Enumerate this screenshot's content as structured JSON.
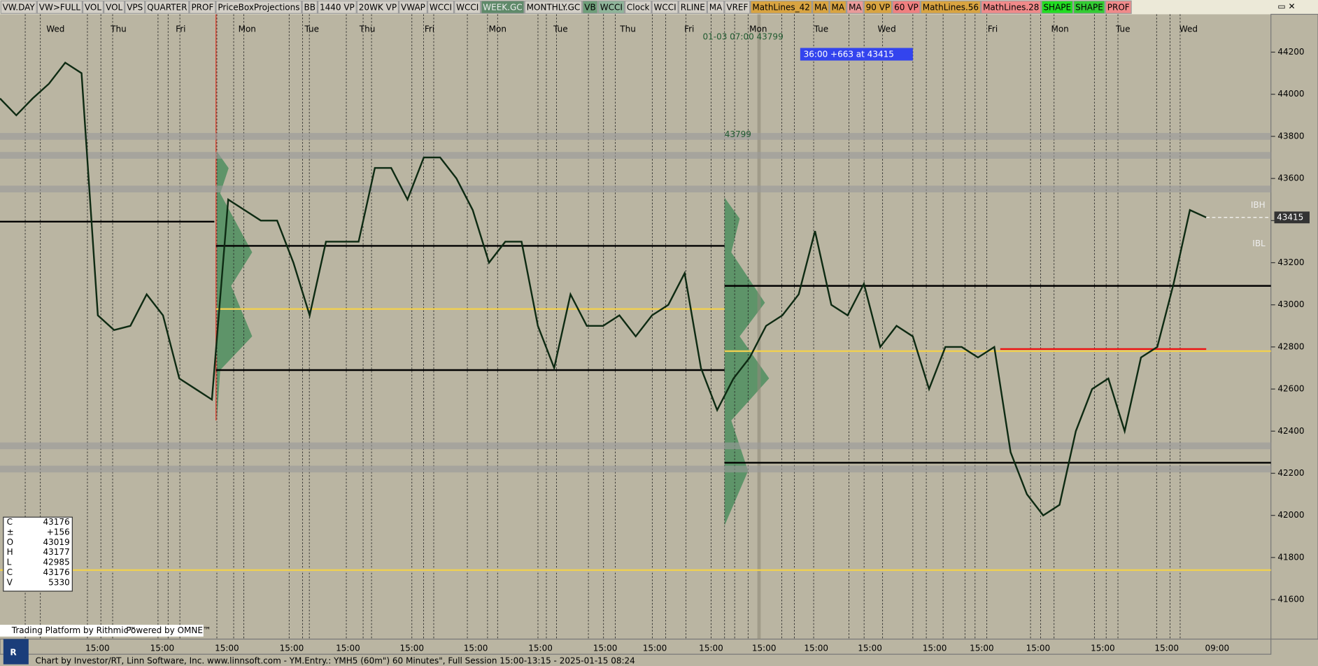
{
  "toolbar": [
    {
      "label": "VW.DAY",
      "color": "#d4d0c8"
    },
    {
      "label": "VW>FULL",
      "color": "#d4d0c8"
    },
    {
      "label": "VOL",
      "color": "#d4d0c8"
    },
    {
      "label": "VOL",
      "color": "#d4d0c8"
    },
    {
      "label": "VPS",
      "color": "#d4d0c8"
    },
    {
      "label": "QUARTER",
      "color": "#d4d0c8"
    },
    {
      "label": "PROF",
      "color": "#d4d0c8"
    },
    {
      "label": "PriceBoxProjections",
      "color": "#d4d0c8"
    },
    {
      "label": "BB",
      "color": "#d4d0c8"
    },
    {
      "label": "1440 VP",
      "color": "#d4d0c8"
    },
    {
      "label": "20WK VP",
      "color": "#d4d0c8"
    },
    {
      "label": "VWAP",
      "color": "#d4d0c8"
    },
    {
      "label": "WCCI",
      "color": "#d4d0c8"
    },
    {
      "label": "WCCI",
      "color": "#d4d0c8"
    },
    {
      "label": "WEEK.GC",
      "color": "#5f8a6a"
    },
    {
      "label": "MONTHLY.GC",
      "color": "#d4d0c8"
    },
    {
      "label": "VB",
      "color": "#6f9f7a"
    },
    {
      "label": "WCCI",
      "color": "#8fb59a"
    },
    {
      "label": "Clock",
      "color": "#d4d0c8"
    },
    {
      "label": "WCCI",
      "color": "#d4d0c8"
    },
    {
      "label": "RLINE",
      "color": "#d4d0c8"
    },
    {
      "label": "MA",
      "color": "#d4d0c8"
    },
    {
      "label": "VREF",
      "color": "#d4d0c8"
    },
    {
      "label": "MathLines_42",
      "color": "#d9a441"
    },
    {
      "label": "MA",
      "color": "#d9a441"
    },
    {
      "label": "MA",
      "color": "#d9a441"
    },
    {
      "label": "MA",
      "color": "#e99a9a"
    },
    {
      "label": "90 VP",
      "color": "#d9a441"
    },
    {
      "label": "60 VP",
      "color": "#f08080"
    },
    {
      "label": "MathLines.56",
      "color": "#d9a441"
    },
    {
      "label": "MathLines.28",
      "color": "#f08a8a"
    },
    {
      "label": "SHAPE",
      "color": "#22dd22"
    },
    {
      "label": "SHAPE",
      "color": "#33cc33"
    },
    {
      "label": "PROF",
      "color": "#f08a8a"
    }
  ],
  "axis": {
    "yticks": [
      44200,
      44000,
      43800,
      43600,
      43400,
      43200,
      43000,
      42800,
      42600,
      42400,
      42200,
      42000,
      41800,
      41600
    ],
    "last_price": 43415,
    "ibh": "IBH",
    "ibl": "IBL"
  },
  "day_labels": [
    "Wed",
    "Thu",
    "Fri",
    "Mon",
    "Tue",
    "Thu",
    "Fri",
    "Mon",
    "Tue",
    "Thu",
    "Fri",
    "Mon",
    "Tue",
    "Wed",
    "Fri",
    "Mon",
    "Tue",
    "Wed"
  ],
  "time_labels": [
    "15:00",
    "15:00",
    "15:00",
    "15:00",
    "15:00",
    "15:00",
    "15:00",
    "15:00",
    "15:00",
    "15:00",
    "15:00",
    "15:00",
    "15:00",
    "15:00",
    "15:00",
    "15:00",
    "15:00",
    "15:00",
    "15:00",
    "09:00"
  ],
  "annotations": {
    "high_note": "01-03 07:00 43799",
    "move_note": "36:00  +663 at 43415",
    "level_note": "43799"
  },
  "info_box": {
    "rows": [
      [
        "C",
        "43176"
      ],
      [
        "±",
        "+156"
      ],
      [
        "O",
        "43019"
      ],
      [
        "H",
        "43177"
      ],
      [
        "L",
        "42985"
      ],
      [
        "C",
        "43176"
      ],
      [
        "V",
        "5330"
      ]
    ]
  },
  "branding": [
    "Trading Platform by Rithmic™",
    "Powered by OMNE™"
  ],
  "footer": "Chart by Investor/RT, Linn Software, Inc. www.linnsoft.com - YM.Entry.: YMH5 (60m\") 60 Minutes\", Full Session 15:00-13:15 - 2025-01-15 08:24",
  "price": [
    43980,
    43900,
    43980,
    44050,
    44150,
    44100,
    42950,
    42880,
    42900,
    43050,
    42950,
    42650,
    42600,
    42550,
    43500,
    43450,
    43400,
    43400,
    43200,
    42950,
    43300,
    43300,
    43300,
    43650,
    43650,
    43500,
    43700,
    43700,
    43600,
    43450,
    43200,
    43300,
    43300,
    42900,
    42700,
    43050,
    42900,
    42900,
    42950,
    42850,
    42950,
    43000,
    43150,
    42700,
    42500,
    42650,
    42750,
    42900,
    42950,
    43050,
    43350,
    43000,
    42950,
    43100,
    42800,
    42900,
    42850,
    42600,
    42800,
    42800,
    42750,
    42800,
    42300,
    42100,
    42000,
    42050,
    42400,
    42600,
    42650,
    42400,
    42750,
    42800,
    43100,
    43450,
    43415
  ],
  "levels": [
    {
      "value": 43800,
      "color": "#9a9a9a"
    },
    {
      "value": 43710,
      "color": "#9a9a9a"
    },
    {
      "value": 43550,
      "color": "#9a9a9a"
    },
    {
      "value": 42330,
      "color": "#9a9a9a"
    },
    {
      "value": 42220,
      "color": "#9a9a9a"
    },
    {
      "value": 43395,
      "color": "#000000"
    },
    {
      "value": 43280,
      "color": "#000000"
    },
    {
      "value": 42690,
      "color": "#000000"
    },
    {
      "value": 43090,
      "color": "#000000"
    },
    {
      "value": 42250,
      "color": "#000000"
    },
    {
      "value": 42980,
      "color": "#f0d050"
    },
    {
      "value": 42780,
      "color": "#f0d050"
    },
    {
      "value": 41740,
      "color": "#f0d050"
    },
    {
      "value": 42790,
      "color": "#ee1111"
    }
  ]
}
